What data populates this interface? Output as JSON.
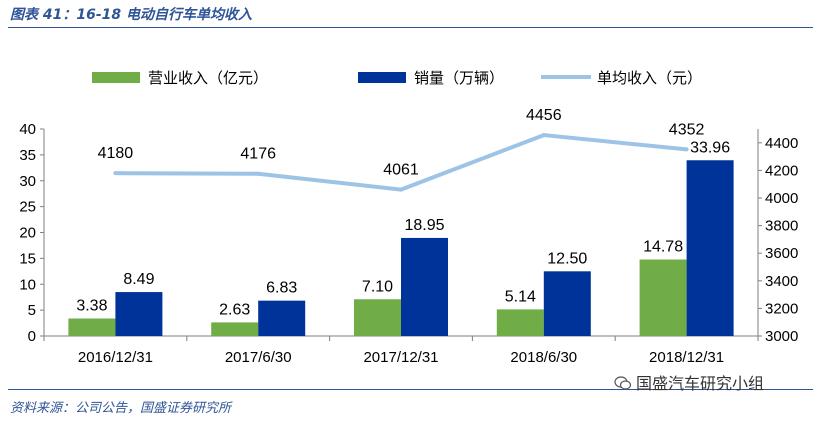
{
  "title": "图表 41：16-18 电动自行车单均收入",
  "source": "资料来源：公司公告，国盛证券研究所",
  "watermark": "国盛汽车研究小组",
  "chart_data": {
    "type": "bar",
    "categories": [
      "2016/12/31",
      "2017/6/30",
      "2017/12/31",
      "2018/6/30",
      "2018/12/31"
    ],
    "series": [
      {
        "name": "营业收入（亿元）",
        "type": "bar",
        "axis": "left",
        "color": "#70ad47",
        "values": [
          3.38,
          2.63,
          7.1,
          5.14,
          14.78
        ],
        "labels": [
          "3.38",
          "2.63",
          "7.10",
          "5.14",
          "14.78"
        ]
      },
      {
        "name": "销量（万辆）",
        "type": "bar",
        "axis": "left",
        "color": "#003399",
        "values": [
          8.49,
          6.83,
          18.95,
          12.5,
          33.96
        ],
        "labels": [
          "8.49",
          "6.83",
          "18.95",
          "12.50",
          "33.96"
        ]
      },
      {
        "name": "单均收入（元）",
        "type": "line",
        "axis": "right",
        "color": "#9dc3e6",
        "values": [
          4180,
          4176,
          4061,
          4456,
          4352
        ],
        "labels": [
          "4180",
          "4176",
          "4061",
          "4456",
          "4352"
        ]
      }
    ],
    "ylim_left": [
      0,
      40
    ],
    "yticks_left": [
      "0",
      "5",
      "10",
      "15",
      "20",
      "25",
      "30",
      "35",
      "40"
    ],
    "ylim_right": [
      3000,
      4500
    ],
    "yticks_right": [
      "3000",
      "3200",
      "3400",
      "3600",
      "3800",
      "4000",
      "4200",
      "4400"
    ],
    "grid": false,
    "legend": "top"
  }
}
